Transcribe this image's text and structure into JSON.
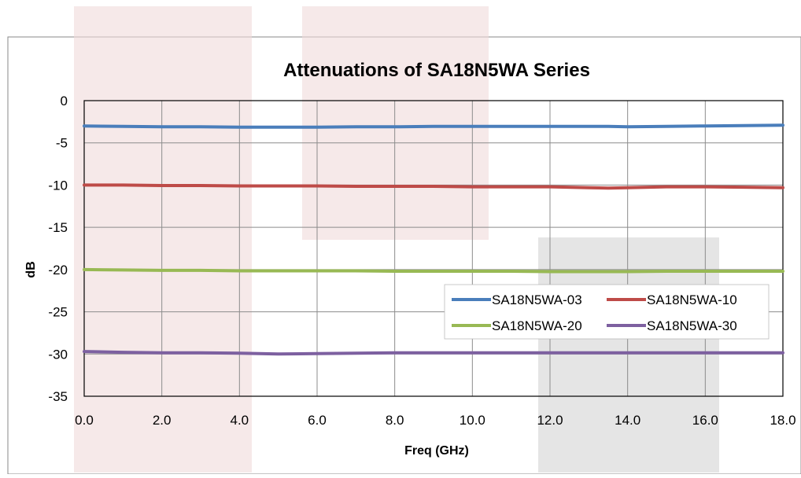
{
  "chart_data": {
    "type": "line",
    "title": "Attenuations of SA18N5WA Series",
    "xlabel": "Freq (GHz)",
    "ylabel": "dB",
    "xlim": [
      0,
      18
    ],
    "ylim": [
      -35,
      0
    ],
    "x_ticks": [
      "0.0",
      "2.0",
      "4.0",
      "6.0",
      "8.0",
      "10.0",
      "12.0",
      "14.0",
      "16.0",
      "18.0"
    ],
    "y_ticks": [
      "0",
      "-5",
      "-10",
      "-15",
      "-20",
      "-25",
      "-30",
      "-35"
    ],
    "grid": true,
    "legend_position": "right, lower-middle",
    "x": [
      0,
      1,
      2,
      3,
      4,
      5,
      6,
      7,
      8,
      9,
      10,
      11,
      12,
      13,
      13.5,
      14,
      15,
      16,
      17,
      18
    ],
    "series": [
      {
        "name": "SA18N5WA-03",
        "color": "#4a7ebb",
        "values": [
          -3.0,
          -3.05,
          -3.1,
          -3.1,
          -3.15,
          -3.15,
          -3.15,
          -3.1,
          -3.1,
          -3.05,
          -3.05,
          -3.05,
          -3.05,
          -3.05,
          -3.05,
          -3.1,
          -3.05,
          -3.0,
          -2.95,
          -2.9
        ]
      },
      {
        "name": "SA18N5WA-10",
        "color": "#be4b48",
        "values": [
          -10.0,
          -10.0,
          -10.05,
          -10.05,
          -10.1,
          -10.1,
          -10.1,
          -10.15,
          -10.15,
          -10.15,
          -10.2,
          -10.2,
          -10.2,
          -10.3,
          -10.35,
          -10.3,
          -10.2,
          -10.2,
          -10.25,
          -10.3
        ]
      },
      {
        "name": "SA18N5WA-20",
        "color": "#98b954",
        "values": [
          -20.0,
          -20.05,
          -20.1,
          -20.1,
          -20.15,
          -20.15,
          -20.15,
          -20.15,
          -20.2,
          -20.2,
          -20.2,
          -20.2,
          -20.25,
          -20.25,
          -20.25,
          -20.25,
          -20.2,
          -20.2,
          -20.2,
          -20.2
        ]
      },
      {
        "name": "SA18N5WA-30",
        "color": "#7d60a0",
        "values": [
          -29.7,
          -29.8,
          -29.85,
          -29.85,
          -29.9,
          -30.0,
          -29.95,
          -29.9,
          -29.85,
          -29.85,
          -29.85,
          -29.85,
          -29.85,
          -29.85,
          -29.85,
          -29.85,
          -29.85,
          -29.85,
          -29.85,
          -29.85
        ]
      }
    ]
  }
}
